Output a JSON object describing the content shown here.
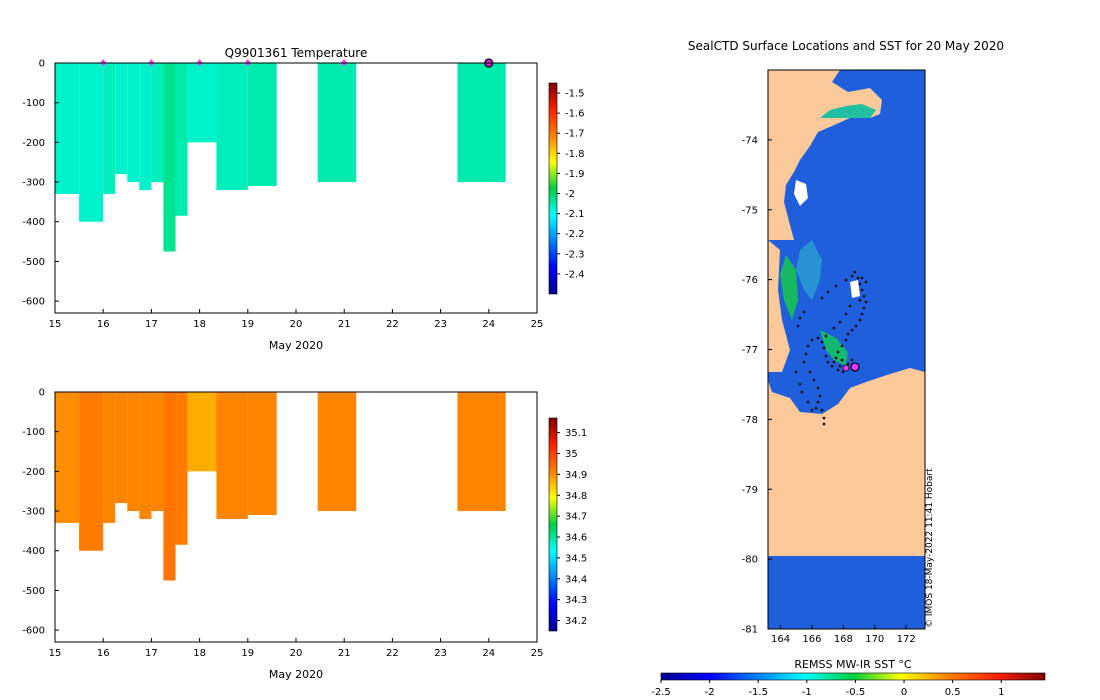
{
  "chart_data": [
    {
      "type": "heatmap",
      "title": "Q9901361  Temperature",
      "xlabel": "May 2020",
      "ylabel": "",
      "xlim": [
        15,
        25
      ],
      "ylim": [
        0,
        -630
      ],
      "xticks": [
        "15",
        "16",
        "17",
        "18",
        "19",
        "20",
        "21",
        "22",
        "23",
        "24",
        "25"
      ],
      "yticks": [
        "0",
        "-100",
        "-200",
        "-300",
        "-400",
        "-500",
        "-600"
      ],
      "colorbar": {
        "ticks": [
          "-1.5",
          "-1.6",
          "-1.7",
          "-1.8",
          "-1.9",
          "-2",
          "-2.1",
          "-2.2",
          "-2.3",
          "-2.4"
        ],
        "range": [
          -2.5,
          -1.45
        ]
      },
      "profiles": [
        {
          "x0": 15.0,
          "x1": 15.5,
          "bottom": -330,
          "value": -2.07
        },
        {
          "x0": 15.5,
          "x1": 16.0,
          "bottom": -400,
          "value": -2.07
        },
        {
          "x0": 16.0,
          "x1": 16.25,
          "bottom": -330,
          "value": -2.06
        },
        {
          "x0": 16.25,
          "x1": 16.5,
          "bottom": -280,
          "value": -2.07
        },
        {
          "x0": 16.5,
          "x1": 16.75,
          "bottom": -300,
          "value": -2.07
        },
        {
          "x0": 16.75,
          "x1": 17.0,
          "bottom": -320,
          "value": -2.07
        },
        {
          "x0": 17.0,
          "x1": 17.25,
          "bottom": -300,
          "value": -2.06
        },
        {
          "x0": 17.25,
          "x1": 17.5,
          "bottom": -475,
          "value": -2.03
        },
        {
          "x0": 17.5,
          "x1": 17.75,
          "bottom": -385,
          "value": -2.05
        },
        {
          "x0": 17.75,
          "x1": 18.35,
          "bottom": -200,
          "value": -2.07
        },
        {
          "x0": 18.35,
          "x1": 19.0,
          "bottom": -320,
          "value": -2.06
        },
        {
          "x0": 19.0,
          "x1": 19.6,
          "bottom": -310,
          "value": -2.05
        },
        {
          "x0": 20.45,
          "x1": 21.25,
          "bottom": -300,
          "value": -2.05
        },
        {
          "x0": 23.35,
          "x1": 24.35,
          "bottom": -300,
          "value": -2.05
        }
      ],
      "surface_markers_x": [
        16,
        17,
        18,
        19,
        21
      ],
      "current_marker_x": 24
    },
    {
      "type": "heatmap",
      "title": "",
      "xlabel": "May 2020",
      "ylabel": "",
      "xlim": [
        15,
        25
      ],
      "ylim": [
        0,
        -630
      ],
      "xticks": [
        "15",
        "16",
        "17",
        "18",
        "19",
        "20",
        "21",
        "22",
        "23",
        "24",
        "25"
      ],
      "yticks": [
        "0",
        "-100",
        "-200",
        "-300",
        "-400",
        "-500",
        "-600"
      ],
      "colorbar": {
        "ticks": [
          "35.1",
          "35",
          "34.9",
          "34.8",
          "34.7",
          "34.6",
          "34.5",
          "34.4",
          "34.3",
          "34.2"
        ],
        "range": [
          34.15,
          35.17
        ]
      },
      "profiles": [
        {
          "x0": 15.0,
          "x1": 15.5,
          "bottom": -330,
          "value": 34.9
        },
        {
          "x0": 15.5,
          "x1": 16.0,
          "bottom": -400,
          "value": 34.92
        },
        {
          "x0": 16.0,
          "x1": 16.25,
          "bottom": -330,
          "value": 34.91
        },
        {
          "x0": 16.25,
          "x1": 16.5,
          "bottom": -280,
          "value": 34.91
        },
        {
          "x0": 16.5,
          "x1": 16.75,
          "bottom": -300,
          "value": 34.91
        },
        {
          "x0": 16.75,
          "x1": 17.0,
          "bottom": -320,
          "value": 34.91
        },
        {
          "x0": 17.0,
          "x1": 17.25,
          "bottom": -300,
          "value": 34.91
        },
        {
          "x0": 17.25,
          "x1": 17.5,
          "bottom": -475,
          "value": 34.93
        },
        {
          "x0": 17.5,
          "x1": 17.75,
          "bottom": -385,
          "value": 34.92
        },
        {
          "x0": 17.75,
          "x1": 18.35,
          "bottom": -200,
          "value": 34.87
        },
        {
          "x0": 18.35,
          "x1": 19.0,
          "bottom": -320,
          "value": 34.91
        },
        {
          "x0": 19.0,
          "x1": 19.6,
          "bottom": -310,
          "value": 34.91
        },
        {
          "x0": 20.45,
          "x1": 21.25,
          "bottom": -300,
          "value": 34.91
        },
        {
          "x0": 23.35,
          "x1": 24.35,
          "bottom": -300,
          "value": 34.91
        }
      ]
    },
    {
      "type": "heatmap",
      "title": "SealCTD Surface Locations and SST for 20 May 2020",
      "xlabel": "REMSS MW-IR SST °C",
      "ylabel": "",
      "xlim": [
        163.2,
        173.2
      ],
      "ylim": [
        -73.0,
        -81.0
      ],
      "xticks": [
        "164",
        "166",
        "168",
        "170",
        "172"
      ],
      "yticks": [
        "-74",
        "-75",
        "-76",
        "-77",
        "-78",
        "-79",
        "-80",
        "-81"
      ],
      "colorbar": {
        "ticks": [
          "-2.5",
          "-2",
          "-1.5",
          "-1",
          "-0.5",
          "0",
          "0.5",
          "1"
        ],
        "range": [
          -2.5,
          1.45
        ]
      },
      "sea_sst": -1.9,
      "credit": "© IMOS 18-May-2022 11:41 Hobart"
    }
  ]
}
